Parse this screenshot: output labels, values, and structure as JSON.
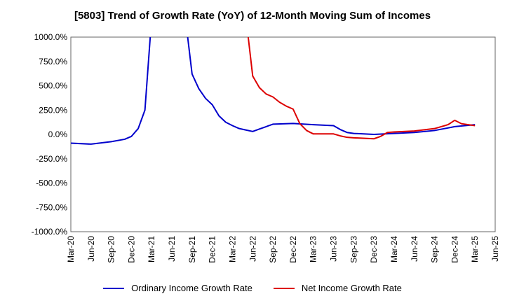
{
  "chart_data": {
    "type": "line",
    "title": "[5803]  Trend of Growth Rate (YoY) of 12-Month Moving Sum of Incomes",
    "xlabel": "",
    "ylabel": "",
    "ylim": [
      -1000,
      1000
    ],
    "y_ticks": [
      "1000.0%",
      "750.0%",
      "500.0%",
      "250.0%",
      "0.0%",
      "-250.0%",
      "-500.0%",
      "-750.0%",
      "-1000.0%"
    ],
    "y_tick_values": [
      1000,
      750,
      500,
      250,
      0,
      -250,
      -500,
      -750,
      -1000
    ],
    "x_ticks": [
      "Mar-20",
      "Jun-20",
      "Sep-20",
      "Dec-20",
      "Mar-21",
      "Jun-21",
      "Sep-21",
      "Dec-21",
      "Mar-22",
      "Jun-22",
      "Sep-22",
      "Dec-22",
      "Mar-23",
      "Jun-23",
      "Sep-23",
      "Dec-23",
      "Mar-24",
      "Jun-24",
      "Sep-24",
      "Dec-24",
      "Mar-25",
      "Jun-25"
    ],
    "months": [
      "Mar-20",
      "Apr-20",
      "May-20",
      "Jun-20",
      "Jul-20",
      "Aug-20",
      "Sep-20",
      "Oct-20",
      "Nov-20",
      "Dec-20",
      "Jan-21",
      "Feb-21",
      "Mar-21",
      "Apr-21",
      "May-21",
      "Jun-21",
      "Jul-21",
      "Aug-21",
      "Sep-21",
      "Oct-21",
      "Nov-21",
      "Dec-21",
      "Jan-22",
      "Feb-22",
      "Mar-22",
      "Apr-22",
      "May-22",
      "Jun-22",
      "Jul-22",
      "Aug-22",
      "Sep-22",
      "Oct-22",
      "Nov-22",
      "Dec-22",
      "Jan-23",
      "Feb-23",
      "Mar-23",
      "Apr-23",
      "May-23",
      "Jun-23",
      "Jul-23",
      "Aug-23",
      "Sep-23",
      "Oct-23",
      "Nov-23",
      "Dec-23",
      "Jan-24",
      "Feb-24",
      "Mar-24",
      "Apr-24",
      "May-24",
      "Jun-24",
      "Jul-24",
      "Aug-24",
      "Sep-24",
      "Oct-24",
      "Nov-24",
      "Dec-24",
      "Jan-25",
      "Feb-25",
      "Mar-25",
      "Apr-25",
      "May-25",
      "Jun-25"
    ],
    "grid": true,
    "legend_position": "bottom",
    "series": [
      {
        "name": "Ordinary Income Growth Rate",
        "color": "#0000cc",
        "values": [
          -90,
          null,
          null,
          -100,
          null,
          null,
          -75,
          null,
          -50,
          -20,
          60,
          250,
          1200,
          null,
          null,
          null,
          null,
          1200,
          620,
          470,
          370,
          305,
          190,
          125,
          90,
          60,
          45,
          30,
          55,
          80,
          105,
          null,
          null,
          112,
          null,
          null,
          100,
          null,
          null,
          90,
          50,
          20,
          10,
          null,
          null,
          0,
          null,
          null,
          10,
          null,
          null,
          20,
          null,
          null,
          40,
          null,
          null,
          80,
          null,
          null,
          100,
          null,
          null,
          null
        ]
      },
      {
        "name": "Net Income Growth Rate",
        "color": "#dd0000",
        "values": [
          null,
          null,
          null,
          null,
          null,
          null,
          null,
          null,
          null,
          null,
          null,
          null,
          null,
          null,
          null,
          null,
          null,
          null,
          null,
          null,
          null,
          null,
          null,
          null,
          null,
          null,
          1200,
          600,
          480,
          415,
          385,
          330,
          290,
          260,
          110,
          40,
          5,
          null,
          null,
          5,
          -15,
          -30,
          -35,
          null,
          null,
          -45,
          -20,
          20,
          25,
          null,
          null,
          35,
          null,
          null,
          60,
          null,
          100,
          145,
          110,
          100,
          90,
          null,
          null,
          null
        ]
      }
    ]
  }
}
